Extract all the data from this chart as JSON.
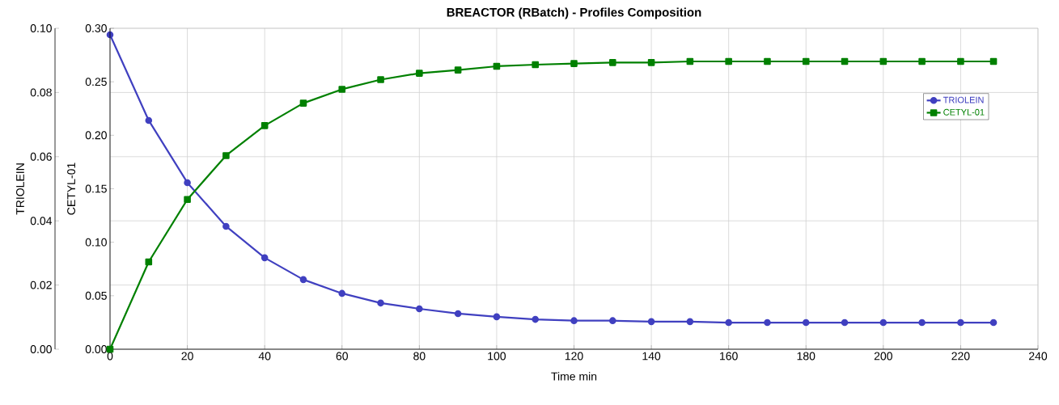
{
  "chart_data": {
    "type": "line",
    "title": "BREACTOR (RBatch) - Profiles Composition",
    "xlabel": "Time min",
    "ylabel": "TRIOLEIN",
    "y2label": "CETYL-01",
    "x": [
      0,
      10,
      20,
      30,
      40,
      50,
      60,
      70,
      80,
      90,
      100,
      110,
      120,
      130,
      140,
      150,
      160,
      170,
      180,
      190,
      200,
      210,
      220,
      228.5
    ],
    "series": [
      {
        "name": "TRIOLEIN",
        "color": "#4040c0",
        "marker": "circle",
        "values": [
          0.098,
          0.0713,
          0.0519,
          0.0383,
          0.0285,
          0.0217,
          0.0174,
          0.0144,
          0.0126,
          0.0111,
          0.0101,
          0.0093,
          0.0089,
          0.0089,
          0.0086,
          0.0086,
          0.0083,
          0.0083,
          0.0083,
          0.0083,
          0.0083,
          0.0083,
          0.0083,
          0.0083
        ]
      },
      {
        "name": "CETYL-01",
        "color": "#008000",
        "marker": "square",
        "axis": "y2",
        "values": [
          0,
          0.0816,
          0.14,
          0.181,
          0.209,
          0.23,
          0.243,
          0.252,
          0.258,
          0.261,
          0.2645,
          0.266,
          0.267,
          0.268,
          0.268,
          0.269,
          0.269,
          0.269,
          0.269,
          0.269,
          0.269,
          0.269,
          0.269,
          0.269
        ]
      }
    ],
    "xlim": [
      0,
      240
    ],
    "xticks": [
      0,
      20,
      40,
      60,
      80,
      100,
      120,
      140,
      160,
      180,
      200,
      220,
      240
    ],
    "ylim": [
      0,
      0.1
    ],
    "yticks": [
      {
        "value": 0,
        "label": "0.00"
      },
      {
        "value": 0.02,
        "label": "0.02"
      },
      {
        "value": 0.04,
        "label": "0.04"
      },
      {
        "value": 0.06,
        "label": "0.06"
      },
      {
        "value": 0.08,
        "label": "0.08"
      },
      {
        "value": 0.1,
        "label": "0.10"
      }
    ],
    "y2lim": [
      0,
      0.3
    ],
    "y2ticks": [
      {
        "value": 0,
        "label": "0.00"
      },
      {
        "value": 0.05,
        "label": "0.05"
      },
      {
        "value": 0.1,
        "label": "0.10"
      },
      {
        "value": 0.15,
        "label": "0.15"
      },
      {
        "value": 0.2,
        "label": "0.20"
      },
      {
        "value": 0.25,
        "label": "0.25"
      },
      {
        "value": 0.3,
        "label": "0.30"
      }
    ],
    "grid": true,
    "legend": "right"
  }
}
